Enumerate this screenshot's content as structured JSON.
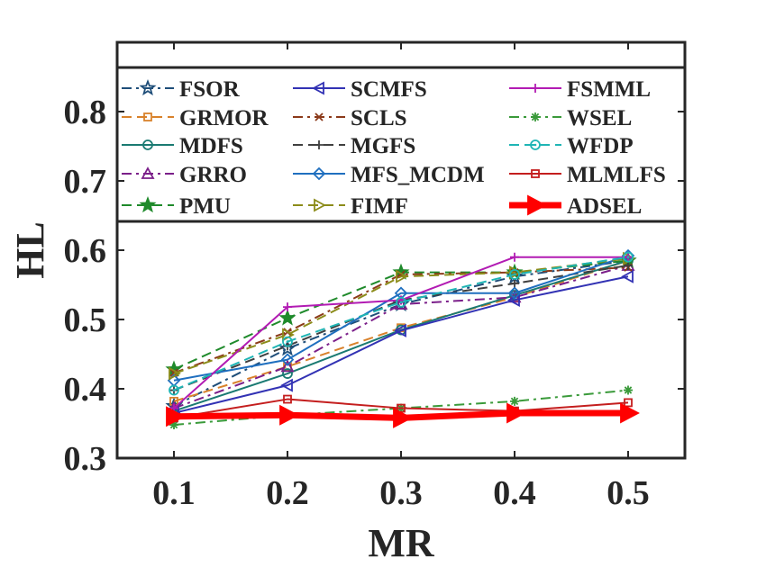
{
  "chart_data": {
    "type": "line",
    "title": "",
    "xlabel": "MR",
    "ylabel": "HL",
    "x": [
      0.1,
      0.2,
      0.3,
      0.4,
      0.5
    ],
    "x_tick_labels": [
      "0.1",
      "0.2",
      "0.3",
      "0.4",
      "0.5"
    ],
    "xlim": [
      0.05,
      0.55
    ],
    "ylim": [
      0.3,
      0.9
    ],
    "y_ticks": [
      0.3,
      0.4,
      0.5,
      0.6,
      0.7,
      0.8
    ],
    "y_tick_labels": [
      "0.3",
      "0.4",
      "0.5",
      "0.6",
      "0.7",
      "0.8"
    ],
    "grid": false,
    "legend_position": "top, three columns",
    "series": [
      {
        "name": "FSOR",
        "color": "#1f4e79",
        "dash": "dashdot",
        "marker": "hexagram",
        "values": [
          0.375,
          0.458,
          0.522,
          0.562,
          0.585
        ]
      },
      {
        "name": "GRMOR",
        "color": "#d9822b",
        "dash": "dashed",
        "marker": "square",
        "values": [
          0.382,
          0.432,
          0.488,
          0.532,
          0.585
        ]
      },
      {
        "name": "MDFS",
        "color": "#1a7a72",
        "dash": "solid",
        "marker": "circle",
        "values": [
          0.368,
          0.422,
          0.485,
          0.535,
          0.585
        ]
      },
      {
        "name": "GRRO",
        "color": "#7b1f8a",
        "dash": "dashdot",
        "marker": "triangle-up",
        "values": [
          0.372,
          0.432,
          0.522,
          0.532,
          0.578
        ]
      },
      {
        "name": "PMU",
        "color": "#1f8a2b",
        "dash": "dashed",
        "marker": "star",
        "values": [
          0.428,
          0.502,
          0.568,
          0.568,
          0.585
        ]
      },
      {
        "name": "SCMFS",
        "color": "#3232b4",
        "dash": "solid",
        "marker": "triangle-left",
        "values": [
          0.365,
          0.405,
          0.484,
          0.528,
          0.562
        ]
      },
      {
        "name": "SCLS",
        "color": "#8b3a1a",
        "dash": "dashdot",
        "marker": "x",
        "values": [
          0.423,
          0.482,
          0.565,
          0.568,
          0.575
        ]
      },
      {
        "name": "MGFS",
        "color": "#404040",
        "dash": "dashed",
        "marker": "plus",
        "values": [
          0.398,
          0.462,
          0.528,
          0.552,
          0.578
        ]
      },
      {
        "name": "MFS_MCDM",
        "color": "#1f6fbf",
        "dash": "solid",
        "marker": "diamond",
        "values": [
          0.412,
          0.442,
          0.538,
          0.538,
          0.592
        ]
      },
      {
        "name": "FIMF",
        "color": "#8c8c1a",
        "dash": "dashed",
        "marker": "triangle-right",
        "values": [
          0.422,
          0.478,
          0.562,
          0.568,
          0.588
        ]
      },
      {
        "name": "FSMML",
        "color": "#b21bb3",
        "dash": "solid",
        "marker": "plus",
        "values": [
          0.372,
          0.518,
          0.528,
          0.59,
          0.59
        ]
      },
      {
        "name": "WSEL",
        "color": "#3a9a3a",
        "dash": "dashdot",
        "marker": "asterisk",
        "values": [
          0.348,
          0.362,
          0.372,
          0.382,
          0.398
        ]
      },
      {
        "name": "WFDP",
        "color": "#1fb5b5",
        "dash": "dashed",
        "marker": "circle-dot",
        "values": [
          0.398,
          0.468,
          0.525,
          0.565,
          0.59
        ]
      },
      {
        "name": "MLMLFS",
        "color": "#c41e1e",
        "dash": "solid",
        "marker": "square",
        "values": [
          0.358,
          0.385,
          0.372,
          0.368,
          0.38
        ]
      },
      {
        "name": "ADSEL",
        "color": "#ff0000",
        "dash": "solid-thick",
        "marker": "big-triangle-right",
        "values": [
          0.36,
          0.362,
          0.358,
          0.365,
          0.365
        ]
      }
    ]
  }
}
